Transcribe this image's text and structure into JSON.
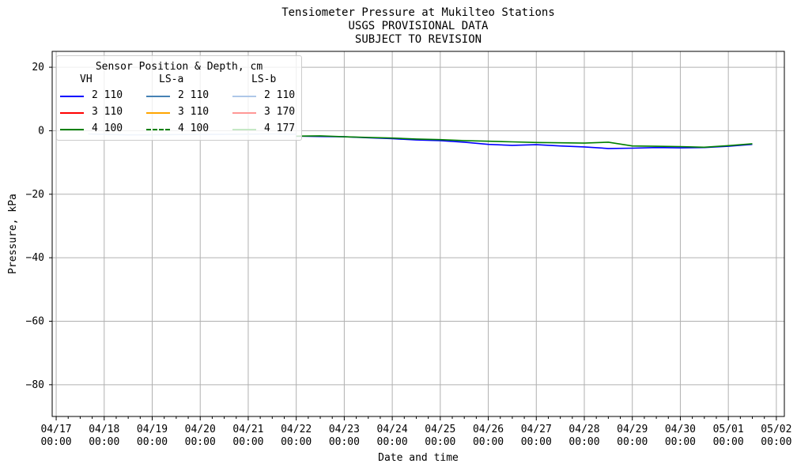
{
  "title_lines": [
    "Tensiometer Pressure at Mukilteo Stations",
    "USGS PROVISIONAL DATA",
    "SUBJECT TO REVISION"
  ],
  "chart_data": {
    "type": "line",
    "xlabel": "Date and time",
    "ylabel": "Pressure, kPa",
    "xlim": [
      "2018-04-16T22:00",
      "2018-05-02T04:00"
    ],
    "ylim": [
      -90,
      25
    ],
    "yticks": [
      20,
      0,
      -20,
      -40,
      -60,
      -80
    ],
    "xticks": [
      {
        "date": "2018-04-17T00:00",
        "label": [
          "04/17",
          "00:00"
        ]
      },
      {
        "date": "2018-04-18T00:00",
        "label": [
          "04/18",
          "00:00"
        ]
      },
      {
        "date": "2018-04-19T00:00",
        "label": [
          "04/19",
          "00:00"
        ]
      },
      {
        "date": "2018-04-20T00:00",
        "label": [
          "04/20",
          "00:00"
        ]
      },
      {
        "date": "2018-04-21T00:00",
        "label": [
          "04/21",
          "00:00"
        ]
      },
      {
        "date": "2018-04-22T00:00",
        "label": [
          "04/22",
          "00:00"
        ]
      },
      {
        "date": "2018-04-23T00:00",
        "label": [
          "04/23",
          "00:00"
        ]
      },
      {
        "date": "2018-04-24T00:00",
        "label": [
          "04/24",
          "00:00"
        ]
      },
      {
        "date": "2018-04-25T00:00",
        "label": [
          "04/25",
          "00:00"
        ]
      },
      {
        "date": "2018-04-26T00:00",
        "label": [
          "04/26",
          "00:00"
        ]
      },
      {
        "date": "2018-04-27T00:00",
        "label": [
          "04/27",
          "00:00"
        ]
      },
      {
        "date": "2018-04-28T00:00",
        "label": [
          "04/28",
          "00:00"
        ]
      },
      {
        "date": "2018-04-29T00:00",
        "label": [
          "04/29",
          "00:00"
        ]
      },
      {
        "date": "2018-04-30T00:00",
        "label": [
          "04/30",
          "00:00"
        ]
      },
      {
        "date": "2018-05-01T00:00",
        "label": [
          "05/01",
          "00:00"
        ]
      },
      {
        "date": "2018-05-02T00:00",
        "label": [
          "05/02",
          "00:00"
        ]
      }
    ],
    "grid": true,
    "legend": {
      "title": "Sensor Position & Depth, cm",
      "placement": "upper-left",
      "columns": [
        {
          "header": "VH",
          "entries": [
            {
              "label": "2 110",
              "color": "#0000ff",
              "style": "solid"
            },
            {
              "label": "3 110",
              "color": "#ff0000",
              "style": "solid"
            },
            {
              "label": "4 100",
              "color": "#008000",
              "style": "solid"
            }
          ]
        },
        {
          "header": "LS-a",
          "entries": [
            {
              "label": "2 110",
              "color": "#4682b4",
              "style": "solid"
            },
            {
              "label": "3 110",
              "color": "#ffa500",
              "style": "solid"
            },
            {
              "label": "4 100",
              "color": "#008000",
              "style": "dashed"
            }
          ]
        },
        {
          "header": "LS-b",
          "entries": [
            {
              "label": "2 110",
              "color": "#aec7e8",
              "style": "solid"
            },
            {
              "label": "3 170",
              "color": "#ff9896",
              "style": "solid"
            },
            {
              "label": "4 177",
              "color": "#c5e8c5",
              "style": "solid"
            }
          ]
        }
      ]
    },
    "series": [
      {
        "color": "#aec7e8",
        "style": "solid",
        "x": [
          "2018-04-17T16:00",
          "2018-04-18T12:00",
          "2018-04-19T12:00",
          "2018-04-20T12:00",
          "2018-04-21T12:00",
          "2018-04-22T00:00"
        ],
        "y": [
          -1.0,
          -1.3,
          -1.2,
          -1.1,
          -1.0,
          -1.1
        ]
      },
      {
        "color": "#0000ff",
        "style": "solid",
        "x": [
          "2018-04-22T00:00",
          "2018-04-22T12:00",
          "2018-04-23T00:00",
          "2018-04-23T12:00",
          "2018-04-24T00:00",
          "2018-04-24T12:00",
          "2018-04-25T00:00",
          "2018-04-25T12:00",
          "2018-04-26T00:00",
          "2018-04-26T12:00",
          "2018-04-27T00:00",
          "2018-04-27T12:00",
          "2018-04-28T00:00",
          "2018-04-28T12:00",
          "2018-04-29T00:00",
          "2018-04-29T12:00",
          "2018-04-30T00:00",
          "2018-04-30T12:00",
          "2018-05-01T00:00",
          "2018-05-01T12:00"
        ],
        "y": [
          -1.7,
          -1.8,
          -1.9,
          -2.2,
          -2.5,
          -2.9,
          -3.1,
          -3.6,
          -4.3,
          -4.6,
          -4.4,
          -4.8,
          -5.1,
          -5.6,
          -5.5,
          -5.3,
          -5.4,
          -5.3,
          -4.9,
          -4.3
        ]
      },
      {
        "color": "#008000",
        "style": "solid",
        "x": [
          "2018-04-22T00:00",
          "2018-04-22T12:00",
          "2018-04-23T00:00",
          "2018-04-23T12:00",
          "2018-04-24T00:00",
          "2018-04-24T12:00",
          "2018-04-25T00:00",
          "2018-04-25T12:00",
          "2018-04-26T00:00",
          "2018-04-26T12:00",
          "2018-04-27T00:00",
          "2018-04-27T12:00",
          "2018-04-28T00:00",
          "2018-04-28T12:00",
          "2018-04-29T00:00",
          "2018-04-29T12:00",
          "2018-04-30T00:00",
          "2018-04-30T12:00",
          "2018-05-01T00:00",
          "2018-05-01T12:00"
        ],
        "y": [
          -1.7,
          -1.6,
          -1.9,
          -2.1,
          -2.3,
          -2.6,
          -2.8,
          -3.1,
          -3.3,
          -3.5,
          -3.7,
          -3.8,
          -3.9,
          -3.6,
          -4.8,
          -4.9,
          -5.0,
          -5.2,
          -4.7,
          -4.1
        ]
      }
    ]
  }
}
